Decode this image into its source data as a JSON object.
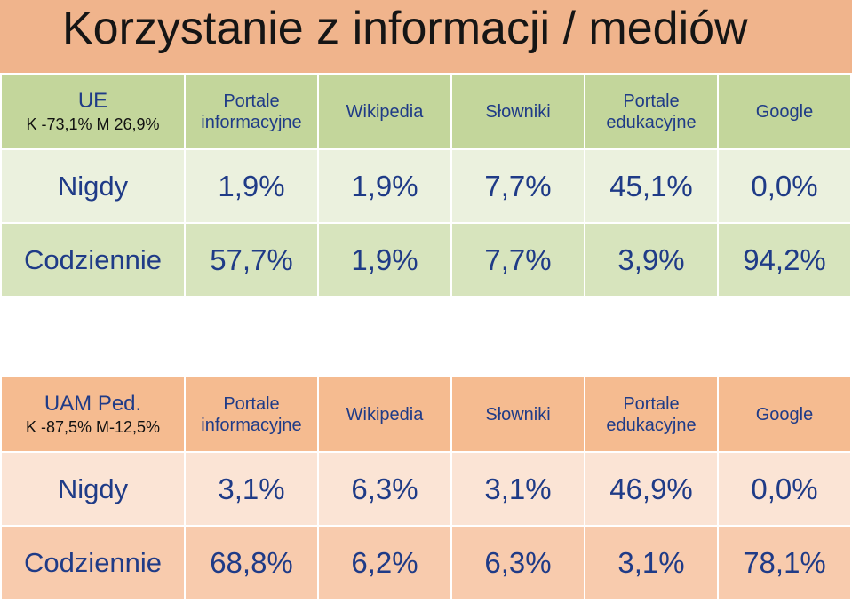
{
  "title": "Korzystanie z informacji / mediów",
  "columns": [
    "Portale informacyjne",
    "Wikipedia",
    "Słowniki",
    "Portale edukacyjne",
    "Google"
  ],
  "tables": [
    {
      "group": "UE",
      "stats": "K -73,1% M  26,9%",
      "rows": [
        {
          "label": "Nigdy",
          "values": [
            "1,9%",
            "1,9%",
            "7,7%",
            "45,1%",
            "0,0%"
          ]
        },
        {
          "label": "Codziennie",
          "values": [
            "57,7%",
            "1,9%",
            "7,7%",
            "3,9%",
            "94,2%"
          ]
        }
      ]
    },
    {
      "group": "UAM  Ped.",
      "stats": "K -87,5% M-12,5%",
      "rows": [
        {
          "label": "Nigdy",
          "values": [
            "3,1%",
            "6,3%",
            "3,1%",
            "46,9%",
            "0,0%"
          ]
        },
        {
          "label": "Codziennie",
          "values": [
            "68,8%",
            "6,2%",
            "6,3%",
            "3,1%",
            "78,1%"
          ]
        }
      ]
    }
  ],
  "colors": {
    "title_bg": "#f0b48c",
    "ue_header": "#c3d69b",
    "ue_row_light": "#ebf1de",
    "ue_row_dark": "#d7e4bd",
    "uam_header": "#f5bb90",
    "uam_row_light": "#fbe4d5",
    "uam_row_dark": "#f8cbad",
    "text_blue": "#1f3b87"
  }
}
